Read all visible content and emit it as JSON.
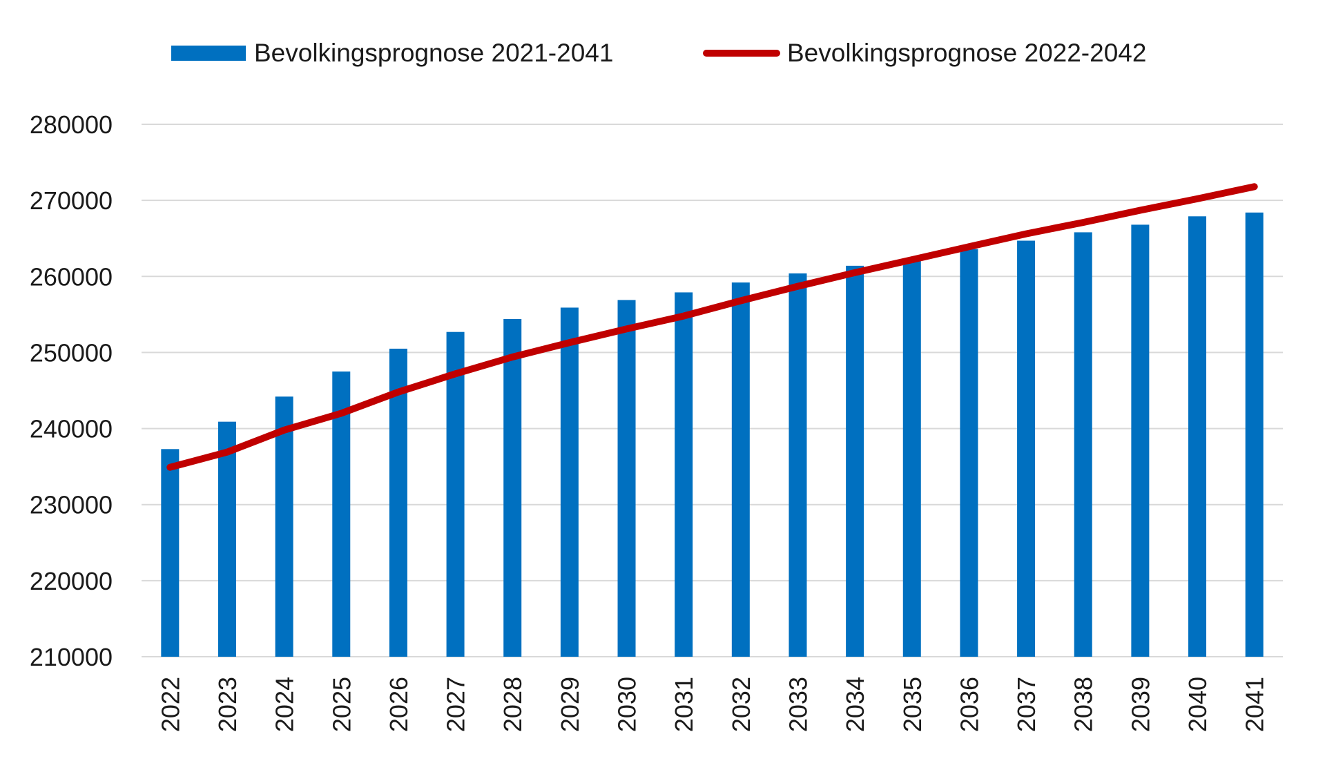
{
  "colors": {
    "bar": "#0070C0",
    "line": "#C00000",
    "grid": "#d9d9d9",
    "text": "#1a1a1a"
  },
  "legend": {
    "items": [
      {
        "label": "Bevolkingsprognose 2021-2041",
        "kind": "bar"
      },
      {
        "label": "Bevolkingsprognose 2022-2042",
        "kind": "line"
      }
    ]
  },
  "chart_data": {
    "type": "bar",
    "categories": [
      "2022",
      "2023",
      "2024",
      "2025",
      "2026",
      "2027",
      "2028",
      "2029",
      "2030",
      "2031",
      "2032",
      "2033",
      "2034",
      "2035",
      "2036",
      "2037",
      "2038",
      "2039",
      "2040",
      "2041"
    ],
    "series": [
      {
        "name": "Bevolkingsprognose 2021-2041",
        "type": "bar",
        "values": [
          237300,
          240900,
          244200,
          247500,
          250500,
          252700,
          254400,
          255900,
          256900,
          257900,
          259200,
          260400,
          261400,
          262300,
          263600,
          264700,
          265800,
          266800,
          267900,
          268400
        ]
      },
      {
        "name": "Bevolkingsprognose 2022-2042",
        "type": "line",
        "values": [
          234900,
          236900,
          239800,
          242000,
          244800,
          247200,
          249400,
          251300,
          253100,
          254800,
          256800,
          258700,
          260500,
          262200,
          263900,
          265600,
          267100,
          268700,
          270200,
          271800
        ]
      }
    ],
    "yticks": [
      210000,
      220000,
      230000,
      240000,
      250000,
      260000,
      270000,
      280000
    ],
    "ylim": [
      210000,
      280000
    ],
    "title": "",
    "xlabel": "",
    "ylabel": "",
    "grid": true,
    "legend_position": "top"
  }
}
